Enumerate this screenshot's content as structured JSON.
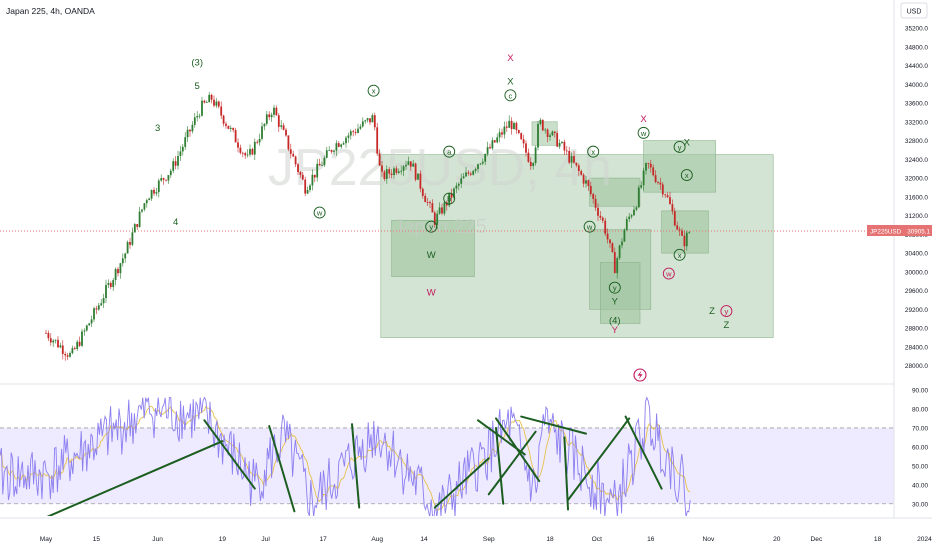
{
  "header": {
    "symbol_line": "Japan 225, 4h, OANDA"
  },
  "currency_button": {
    "label": "USD"
  },
  "watermark": {
    "symbol": "JP225USD, 4h",
    "name": "Japan 225"
  },
  "price_tag": {
    "symbol": "JP225USD",
    "value": "30905.1"
  },
  "colors": {
    "bull_candle": "#2e7d32",
    "bear_candle": "#c62828",
    "box_fill": "#9fc49f",
    "wave_green": "#1b5e20",
    "wave_red": "#c2185b",
    "rsi_line": "#8c7ff0",
    "rsi_ma": "#e6c34a",
    "rsi_band": "#eeeaff",
    "price_tag": "#e57373"
  },
  "chart_data": [
    {
      "type": "candlestick",
      "title": "Japan 225, 4h, OANDA",
      "y_axis_labels": [
        "35200.0",
        "34800.0",
        "34400.0",
        "34000.0",
        "33600.0",
        "33200.0",
        "32800.0",
        "32400.0",
        "32000.0",
        "31600.0",
        "31200.0",
        "30800.0",
        "30400.0",
        "30000.0",
        "29600.0",
        "29200.0",
        "28800.0",
        "28400.0",
        "28000.0"
      ],
      "ylim": [
        27700,
        35700
      ],
      "x_ticks": [
        "May",
        "15",
        "Jun",
        "19",
        "Jul",
        "17",
        "Aug",
        "14",
        "Sep",
        "18",
        "Oct",
        "16",
        "Nov",
        "20",
        "Dec",
        "18",
        "2024"
      ],
      "last_price": 30905.1,
      "series": [
        {
          "key_points": [
            {
              "x": "May 1",
              "y": 28700
            },
            {
              "x": "May 8",
              "y": 28200
            },
            {
              "x": "May 15",
              "y": 29200
            },
            {
              "x": "May 23",
              "y": 30400
            },
            {
              "x": "May 29",
              "y": 31600
            },
            {
              "x": "Jun 5",
              "y": 32200
            },
            {
              "x": "Jun 13",
              "y": 33500
            },
            {
              "x": "Jun 16",
              "y": 33700
            },
            {
              "x": "Jun 26",
              "y": 32400
            },
            {
              "x": "Jul 3",
              "y": 33500
            },
            {
              "x": "Jul 12",
              "y": 31800
            },
            {
              "x": "Jul 20",
              "y": 32700
            },
            {
              "x": "Jul 31",
              "y": 33300
            },
            {
              "x": "Aug 2",
              "y": 32000
            },
            {
              "x": "Aug 10",
              "y": 32400
            },
            {
              "x": "Aug 17",
              "y": 31100
            },
            {
              "x": "Aug 24",
              "y": 31900
            },
            {
              "x": "Sep 1",
              "y": 32600
            },
            {
              "x": "Sep 7",
              "y": 33200
            },
            {
              "x": "Sep 13",
              "y": 32300
            },
            {
              "x": "Sep 15",
              "y": 33200
            },
            {
              "x": "Sep 21",
              "y": 32700
            },
            {
              "x": "Sep 28",
              "y": 31900
            },
            {
              "x": "Oct 3",
              "y": 31000
            },
            {
              "x": "Oct 6",
              "y": 30100
            },
            {
              "x": "Oct 9",
              "y": 31000
            },
            {
              "x": "Oct 12",
              "y": 31500
            },
            {
              "x": "Oct 15",
              "y": 32300
            },
            {
              "x": "Oct 20",
              "y": 31700
            },
            {
              "x": "Oct 25",
              "y": 30600
            },
            {
              "x": "Oct 27",
              "y": 30905
            }
          ]
        }
      ],
      "annotations": [
        {
          "text": "(3)",
          "x": "Jun 12",
          "y": 34400,
          "color": "green"
        },
        {
          "text": "5",
          "x": "Jun 12",
          "y": 33900,
          "color": "green"
        },
        {
          "text": "3",
          "x": "Jun 1",
          "y": 33000,
          "color": "green"
        },
        {
          "text": "4",
          "x": "Jun 6",
          "y": 31000,
          "color": "green"
        },
        {
          "text": "x",
          "x": "Jul 31",
          "y": 33800,
          "color": "green",
          "circled": true
        },
        {
          "text": "w",
          "x": "Jul 16",
          "y": 31200,
          "color": "green",
          "circled": true
        },
        {
          "text": "a",
          "x": "Aug 21",
          "y": 32500,
          "color": "green",
          "circled": true
        },
        {
          "text": "b",
          "x": "Aug 21",
          "y": 31500,
          "color": "green",
          "circled": true
        },
        {
          "text": "y",
          "x": "Aug 16",
          "y": 30900,
          "color": "green",
          "circled": true
        },
        {
          "text": "W",
          "x": "Aug 16",
          "y": 30300,
          "color": "green"
        },
        {
          "text": "W",
          "x": "Aug 16",
          "y": 29500,
          "color": "red"
        },
        {
          "text": "X",
          "x": "Sep 7",
          "y": 34500,
          "color": "red"
        },
        {
          "text": "X",
          "x": "Sep 7",
          "y": 34000,
          "color": "green"
        },
        {
          "text": "c",
          "x": "Sep 7",
          "y": 33700,
          "color": "green",
          "circled": true
        },
        {
          "text": "x",
          "x": "Sep 30",
          "y": 32500,
          "color": "green",
          "circled": true
        },
        {
          "text": "w",
          "x": "Sep 29",
          "y": 30900,
          "color": "green",
          "circled": true
        },
        {
          "text": "y",
          "x": "Oct 6",
          "y": 29600,
          "color": "green",
          "circled": true
        },
        {
          "text": "Y",
          "x": "Oct 6",
          "y": 29300,
          "color": "green"
        },
        {
          "text": "(4)",
          "x": "Oct 6",
          "y": 28900,
          "color": "green"
        },
        {
          "text": "Y",
          "x": "Oct 6",
          "y": 28700,
          "color": "red"
        },
        {
          "text": "X",
          "x": "Oct 14",
          "y": 33200,
          "color": "red"
        },
        {
          "text": "w",
          "x": "Oct 14",
          "y": 32900,
          "color": "green",
          "circled": true
        },
        {
          "text": "y",
          "x": "Oct 24",
          "y": 32600,
          "color": "green",
          "circled": true
        },
        {
          "text": "X",
          "x": "Oct 26",
          "y": 32700,
          "color": "green"
        },
        {
          "text": "x",
          "x": "Oct 26",
          "y": 32000,
          "color": "green",
          "circled": true
        },
        {
          "text": "x",
          "x": "Oct 24",
          "y": 30300,
          "color": "green",
          "circled": true
        },
        {
          "text": "w",
          "x": "Oct 21",
          "y": 29900,
          "color": "red",
          "circled": true
        },
        {
          "text": "Z",
          "x": "Nov 2",
          "y": 29100,
          "color": "green"
        },
        {
          "text": "y",
          "x": "Nov 6",
          "y": 29100,
          "color": "red",
          "circled": true
        },
        {
          "text": "Z",
          "x": "Nov 6",
          "y": 28800,
          "color": "green"
        }
      ]
    },
    {
      "type": "line",
      "title": "RSI",
      "y_axis_labels": [
        "90.00",
        "80.00",
        "70.00",
        "60.00",
        "50.00",
        "40.00",
        "30.00"
      ],
      "ylim": [
        20,
        92
      ],
      "bands": [
        30,
        70
      ],
      "series": [
        {
          "key_points": [
            {
              "x": "May 1",
              "y": 45
            },
            {
              "x": "May 15",
              "y": 62
            },
            {
              "x": "May 30",
              "y": 80
            },
            {
              "x": "Jun 14",
              "y": 75
            },
            {
              "x": "Jun 28",
              "y": 40
            },
            {
              "x": "Jul 6",
              "y": 65
            },
            {
              "x": "Jul 14",
              "y": 30
            },
            {
              "x": "Aug 1",
              "y": 68
            },
            {
              "x": "Aug 18",
              "y": 25
            },
            {
              "x": "Sep 7",
              "y": 72
            },
            {
              "x": "Sep 14",
              "y": 35
            },
            {
              "x": "Sep 16",
              "y": 73
            },
            {
              "x": "Oct 6",
              "y": 28
            },
            {
              "x": "Oct 15",
              "y": 75
            },
            {
              "x": "Oct 27",
              "y": 33
            }
          ]
        }
      ]
    }
  ]
}
